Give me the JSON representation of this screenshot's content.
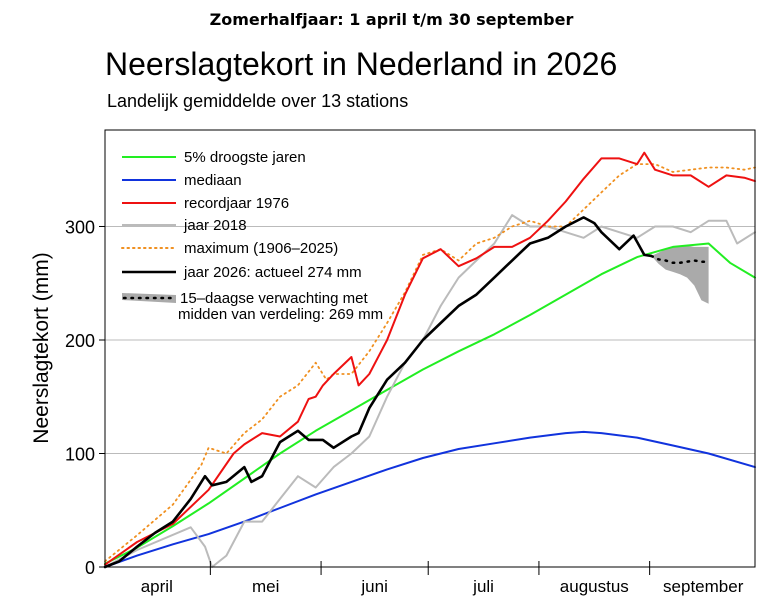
{
  "header": {
    "season": "Zomerhalfjaar: 1 april t/m 30 september"
  },
  "chart_data": {
    "type": "line",
    "title": "Neerslagtekort in Nederland in 2026",
    "subtitle": "Landelijk gemiddelde over 13 stations",
    "ylabel": "Neerslagtekort (mm)",
    "xlabel": "",
    "xlim": [
      1,
      183
    ],
    "ylim": [
      0,
      385
    ],
    "yticks": [
      0,
      100,
      200,
      300
    ],
    "grid": true,
    "legend_position": "top-left",
    "months": [
      {
        "label": "april",
        "start": 1,
        "end": 30
      },
      {
        "label": "mei",
        "start": 31,
        "end": 61
      },
      {
        "label": "juni",
        "start": 62,
        "end": 91
      },
      {
        "label": "juli",
        "start": 92,
        "end": 122
      },
      {
        "label": "augustus",
        "start": 123,
        "end": 153
      },
      {
        "label": "september",
        "start": 154,
        "end": 183
      }
    ],
    "series": [
      {
        "key": "p5",
        "name": "5% droogste jaren",
        "color": "#22ee22",
        "style": "solid",
        "x": [
          1,
          10,
          20,
          30,
          40,
          50,
          60,
          70,
          80,
          90,
          100,
          110,
          120,
          130,
          140,
          150,
          160,
          170,
          176,
          183
        ],
        "y": [
          3,
          17,
          36,
          56,
          78,
          100,
          120,
          138,
          156,
          174,
          190,
          205,
          222,
          240,
          258,
          273,
          282,
          285,
          268,
          255
        ]
      },
      {
        "key": "median",
        "name": "mediaan",
        "color": "#1133dd",
        "style": "solid",
        "x": [
          1,
          10,
          20,
          30,
          40,
          50,
          60,
          70,
          80,
          90,
          100,
          110,
          120,
          130,
          135,
          140,
          150,
          160,
          170,
          183
        ],
        "y": [
          0,
          10,
          20,
          29,
          40,
          52,
          64,
          75,
          86,
          96,
          104,
          109,
          114,
          118,
          119,
          118,
          114,
          107,
          100,
          88
        ]
      },
      {
        "key": "1976",
        "name": "recordjaar 1976",
        "color": "#ee1111",
        "style": "solid",
        "x": [
          1,
          10,
          20,
          30,
          37,
          40,
          45,
          50,
          55,
          58,
          60,
          62,
          65,
          70,
          72,
          75,
          80,
          85,
          90,
          95,
          100,
          105,
          110,
          115,
          120,
          125,
          130,
          135,
          140,
          145,
          150,
          152,
          155,
          160,
          165,
          170,
          175,
          180,
          183
        ],
        "y": [
          2,
          22,
          38,
          68,
          100,
          108,
          118,
          115,
          128,
          148,
          150,
          160,
          170,
          185,
          160,
          170,
          200,
          240,
          272,
          280,
          265,
          272,
          282,
          282,
          290,
          305,
          322,
          342,
          360,
          360,
          355,
          365,
          350,
          345,
          345,
          335,
          345,
          343,
          340
        ]
      },
      {
        "key": "2018",
        "name": "jaar 2018",
        "color": "#bbbbbb",
        "style": "solid",
        "x": [
          1,
          10,
          25,
          29,
          31,
          35,
          40,
          45,
          50,
          55,
          60,
          65,
          70,
          75,
          80,
          85,
          90,
          95,
          100,
          105,
          110,
          115,
          120,
          125,
          130,
          135,
          140,
          145,
          150,
          155,
          160,
          165,
          170,
          175,
          178,
          183
        ],
        "y": [
          0,
          15,
          35,
          18,
          0,
          10,
          40,
          40,
          60,
          80,
          70,
          88,
          100,
          115,
          150,
          180,
          200,
          230,
          255,
          270,
          285,
          310,
          300,
          300,
          295,
          290,
          300,
          295,
          290,
          300,
          300,
          295,
          305,
          305,
          285,
          295
        ]
      },
      {
        "key": "max",
        "name": "maximum (1906–2025)",
        "color": "#f09020",
        "style": "dotted",
        "x": [
          1,
          10,
          20,
          28,
          30,
          35,
          40,
          45,
          50,
          55,
          60,
          63,
          65,
          70,
          75,
          80,
          85,
          90,
          95,
          100,
          105,
          110,
          115,
          120,
          125,
          130,
          135,
          140,
          145,
          150,
          155,
          160,
          165,
          170,
          175,
          180,
          183
        ],
        "y": [
          5,
          28,
          55,
          90,
          105,
          100,
          118,
          130,
          150,
          160,
          180,
          165,
          170,
          170,
          190,
          215,
          242,
          275,
          280,
          270,
          285,
          290,
          300,
          305,
          300,
          300,
          315,
          330,
          345,
          355,
          355,
          348,
          350,
          352,
          352,
          350,
          352
        ]
      },
      {
        "key": "2026",
        "name": "jaar 2026: actueel 274 mm",
        "color": "#000000",
        "style": "solid",
        "bold": true,
        "x": [
          1,
          5,
          10,
          15,
          20,
          25,
          29,
          31,
          35,
          40,
          42,
          45,
          50,
          55,
          58,
          62,
          65,
          70,
          72,
          75,
          80,
          85,
          90,
          95,
          100,
          105,
          110,
          115,
          120,
          125,
          130,
          135,
          138,
          140,
          145,
          149,
          152,
          154
        ],
        "y": [
          0,
          5,
          18,
          30,
          40,
          60,
          80,
          72,
          75,
          88,
          75,
          80,
          110,
          120,
          112,
          112,
          105,
          115,
          118,
          140,
          165,
          180,
          200,
          215,
          230,
          240,
          255,
          270,
          285,
          290,
          300,
          308,
          303,
          295,
          280,
          292,
          275,
          274
        ]
      },
      {
        "key": "forecast",
        "name": "15–daagse verwachting met",
        "name_line2": "midden van verdeling: 269 mm",
        "color": "#000000",
        "style": "dotted",
        "x": [
          154,
          156,
          158,
          160,
          162,
          164,
          166,
          168,
          170
        ],
        "y": [
          274,
          271,
          270,
          268,
          268,
          269,
          270,
          269,
          269
        ],
        "band": {
          "x": [
            154,
            156,
            158,
            160,
            162,
            164,
            166,
            168,
            170
          ],
          "lower": [
            274,
            267,
            262,
            260,
            258,
            255,
            248,
            235,
            232
          ],
          "upper": [
            274,
            277,
            280,
            282,
            283,
            283,
            282,
            282,
            282
          ],
          "color": "#aaaaaa"
        }
      }
    ]
  }
}
